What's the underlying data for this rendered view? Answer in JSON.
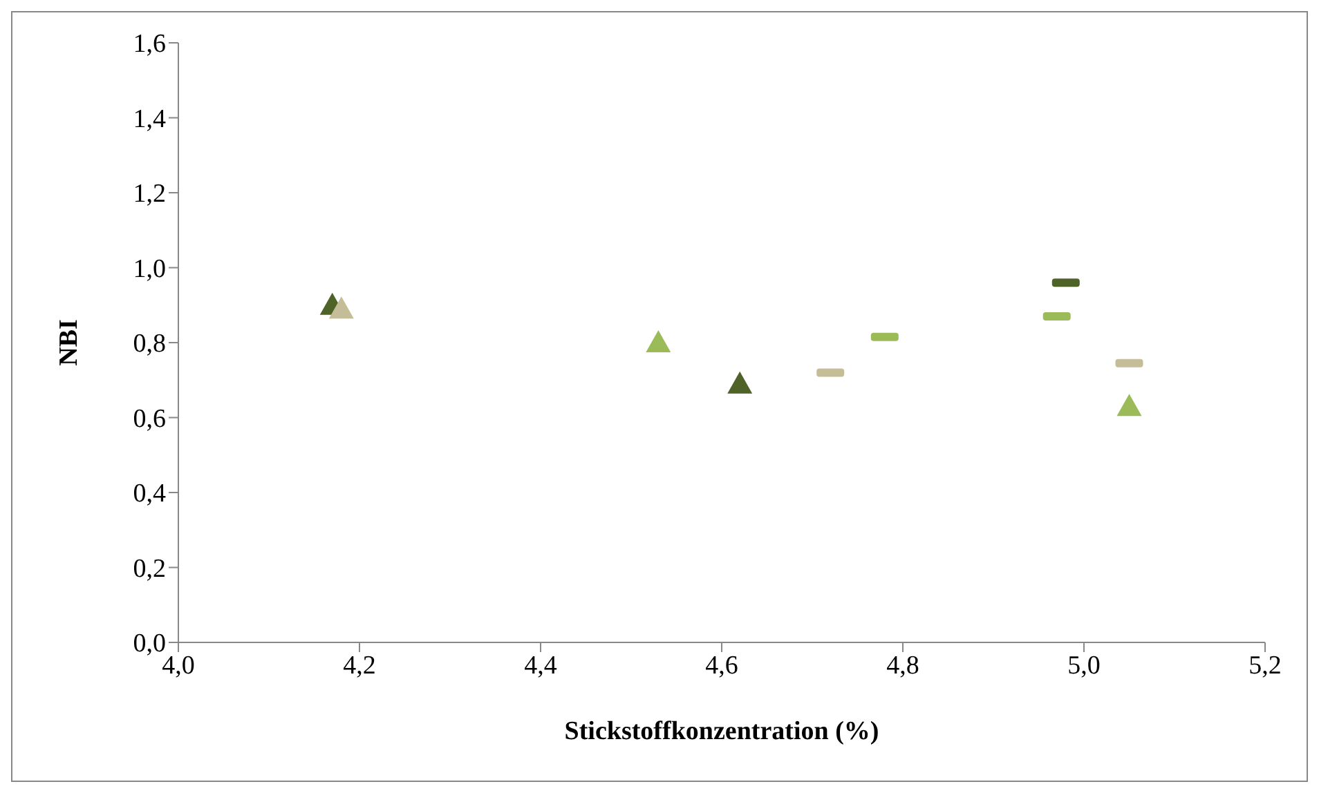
{
  "chart_data": {
    "type": "scatter",
    "xlabel": "Stickstoffkonzentration (%)",
    "ylabel": "NBI",
    "xlim": [
      4.0,
      5.2
    ],
    "xticks": [
      {
        "value": 4.0,
        "label": "4,0"
      },
      {
        "value": 4.2,
        "label": "4,2"
      },
      {
        "value": 4.4,
        "label": "4,4"
      },
      {
        "value": 4.6,
        "label": "4,6"
      },
      {
        "value": 4.8,
        "label": "4,8"
      },
      {
        "value": 5.0,
        "label": "5,0"
      },
      {
        "value": 5.2,
        "label": "5,2"
      }
    ],
    "ylim": [
      0,
      1.6
    ],
    "yticks": [
      {
        "value": 0,
        "label": "0,0"
      },
      {
        "value": 0.2,
        "label": "0,2"
      },
      {
        "value": 0.4,
        "label": "0,4"
      },
      {
        "value": 0.6,
        "label": "0,6"
      },
      {
        "value": 0.8,
        "label": "0,8"
      },
      {
        "value": 1.0,
        "label": "1,0"
      },
      {
        "value": 1.2,
        "label": "1,2"
      },
      {
        "value": 1.4,
        "label": "1,4"
      },
      {
        "value": 1.6,
        "label": "1,6"
      }
    ],
    "grid": false,
    "legend": false,
    "series": [
      {
        "color": "#4f6228",
        "marker": "triangle",
        "x": [
          4.17,
          4.62
        ],
        "values": [
          0.9,
          0.69
        ]
      },
      {
        "color": "#c4bd97",
        "marker": "triangle",
        "x": [
          4.18
        ],
        "values": [
          0.89
        ]
      },
      {
        "color": "#9bbb59",
        "marker": "triangle",
        "x": [
          4.53,
          5.05
        ],
        "values": [
          0.8,
          0.63
        ]
      },
      {
        "color": "#4f6228",
        "marker": "square",
        "x": [
          4.98
        ],
        "values": [
          0.96
        ]
      },
      {
        "color": "#9bbb59",
        "marker": "square",
        "x": [
          4.78,
          4.97
        ],
        "values": [
          0.815,
          0.87
        ]
      },
      {
        "color": "#c4bd97",
        "marker": "square",
        "x": [
          4.72,
          5.05
        ],
        "values": [
          0.72,
          0.745
        ]
      }
    ]
  }
}
